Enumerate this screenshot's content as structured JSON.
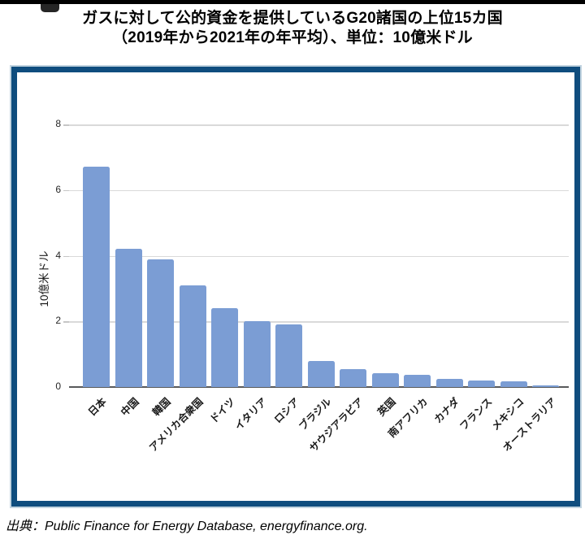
{
  "page": {
    "title_line1": "ガスに対して公的資金を提供しているG20諸国の上位15カ国",
    "title_line2": "（2019年から2021年の年平均）、単位：10億米ドル",
    "source": "出典：Public Finance for Energy Database, energyfinance.org."
  },
  "colors": {
    "bar_fill": "#7B9DD4",
    "panel_border": "#0F4D7E",
    "gridline": "#D9D9D9",
    "axis_line": "#58595B"
  },
  "chart_data": {
    "type": "bar",
    "title": "ガスに対して公的資金を提供しているG20諸国の上位15カ国（2019年から2021年の年平均）、単位：10億米ドル",
    "categories": [
      "日本",
      "中国",
      "韓国",
      "アメリカ合衆国",
      "ドイツ",
      "イタリア",
      "ロシア",
      "ブラジル",
      "サウジアラビア",
      "英国",
      "南アフリカ",
      "カナダ",
      "フランス",
      "メキシコ",
      "オーストラリア"
    ],
    "values": [
      6.7,
      4.2,
      3.9,
      3.1,
      2.4,
      2.0,
      1.9,
      0.8,
      0.55,
      0.42,
      0.38,
      0.24,
      0.2,
      0.17,
      0.05
    ],
    "xlabel": "",
    "ylabel": "10億米ドル",
    "yticks": [
      0,
      2,
      4,
      6,
      8
    ],
    "ylim": [
      0,
      8
    ],
    "grid": true,
    "legend": false
  }
}
